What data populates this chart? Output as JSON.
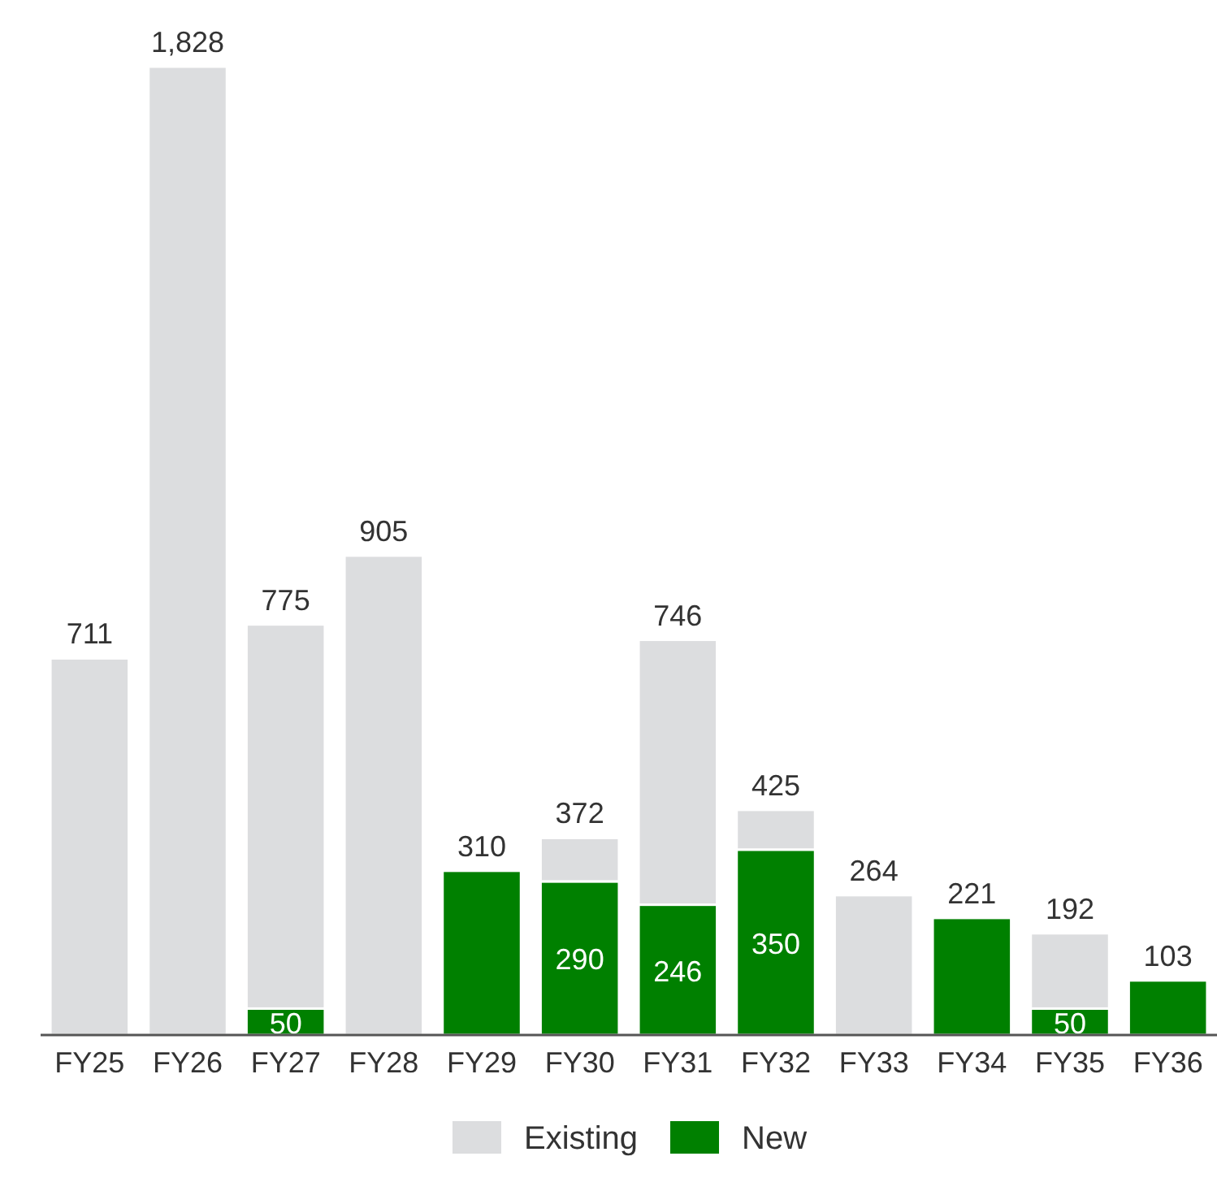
{
  "chart_data": {
    "type": "bar",
    "stacked": true,
    "legend": "bottom",
    "categories": [
      "FY25",
      "FY26",
      "FY27",
      "FY28",
      "FY29",
      "FY30",
      "FY31",
      "FY32",
      "FY33",
      "FY34",
      "FY35",
      "FY36"
    ],
    "series": [
      {
        "name": "New",
        "color": "#008000",
        "values": [
          null,
          null,
          50,
          null,
          310,
          290,
          246,
          350,
          null,
          221,
          50,
          103
        ],
        "value_labels": [
          null,
          null,
          "50",
          null,
          null,
          "290",
          "246",
          "350",
          null,
          null,
          "50",
          null
        ]
      },
      {
        "name": "Existing",
        "color": "#dcdddf",
        "values": [
          711,
          1828,
          725,
          905,
          null,
          82,
          500,
          75,
          264,
          null,
          142,
          null
        ]
      }
    ],
    "totals": [
      "711",
      "1,828",
      "775",
      "905",
      "310",
      "372",
      "746",
      "425",
      "264",
      "221",
      "192",
      "103"
    ]
  }
}
